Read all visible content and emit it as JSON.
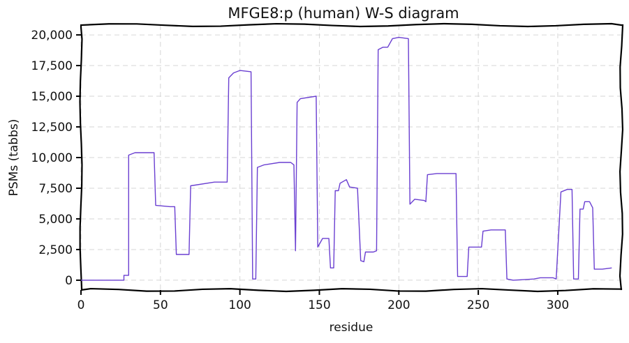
{
  "chart_data": {
    "type": "line",
    "title": "MFGE8:p (human) W-S diagram",
    "xlabel": "residue",
    "ylabel": "PSMs (tabbs)",
    "xlim": [
      0,
      340
    ],
    "ylim": [
      -800,
      20800
    ],
    "grid": true,
    "x_ticks": [
      0,
      50,
      100,
      150,
      200,
      250,
      300
    ],
    "x_tick_labels": [
      "0",
      "50",
      "100",
      "150",
      "200",
      "250",
      "300"
    ],
    "y_ticks": [
      0,
      2500,
      5000,
      7500,
      10000,
      12500,
      15000,
      17500,
      20000
    ],
    "y_tick_labels": [
      "0",
      "2,500",
      "5,000",
      "7,500",
      "10,000",
      "12,500",
      "15,000",
      "17,500",
      "20,000"
    ],
    "series": [
      {
        "color": "#6a3fd1",
        "points": [
          [
            0,
            0
          ],
          [
            27,
            0
          ],
          [
            27,
            400
          ],
          [
            30,
            400
          ],
          [
            30,
            10200
          ],
          [
            34,
            10400
          ],
          [
            46,
            10400
          ],
          [
            47,
            6100
          ],
          [
            56,
            6000
          ],
          [
            59,
            6000
          ],
          [
            60,
            2100
          ],
          [
            68,
            2100
          ],
          [
            69,
            7700
          ],
          [
            84,
            8000
          ],
          [
            92,
            8000
          ],
          [
            93,
            16500
          ],
          [
            96,
            16900
          ],
          [
            100,
            17100
          ],
          [
            107,
            17000
          ],
          [
            108,
            100
          ],
          [
            110,
            100
          ],
          [
            111,
            9200
          ],
          [
            115,
            9400
          ],
          [
            125,
            9600
          ],
          [
            132,
            9600
          ],
          [
            134,
            9400
          ],
          [
            135,
            2400
          ],
          [
            136,
            14500
          ],
          [
            138,
            14800
          ],
          [
            148,
            15000
          ],
          [
            149,
            2700
          ],
          [
            152,
            3400
          ],
          [
            156,
            3400
          ],
          [
            157,
            1000
          ],
          [
            159,
            1000
          ],
          [
            160,
            7300
          ],
          [
            162,
            7300
          ],
          [
            163,
            7900
          ],
          [
            167,
            8200
          ],
          [
            169,
            7600
          ],
          [
            174,
            7500
          ],
          [
            176,
            1600
          ],
          [
            178,
            1500
          ],
          [
            179,
            2300
          ],
          [
            184,
            2300
          ],
          [
            186,
            2400
          ],
          [
            187,
            18800
          ],
          [
            190,
            19000
          ],
          [
            193,
            19000
          ],
          [
            196,
            19700
          ],
          [
            200,
            19800
          ],
          [
            206,
            19700
          ],
          [
            207,
            6200
          ],
          [
            210,
            6600
          ],
          [
            216,
            6500
          ],
          [
            217,
            6400
          ],
          [
            218,
            8600
          ],
          [
            224,
            8700
          ],
          [
            236,
            8700
          ],
          [
            237,
            300
          ],
          [
            243,
            300
          ],
          [
            244,
            2700
          ],
          [
            250,
            2700
          ],
          [
            252,
            2700
          ],
          [
            253,
            4000
          ],
          [
            258,
            4100
          ],
          [
            267,
            4100
          ],
          [
            268,
            100
          ],
          [
            272,
            0
          ],
          [
            285,
            100
          ],
          [
            289,
            200
          ],
          [
            297,
            200
          ],
          [
            299,
            100
          ],
          [
            302,
            7200
          ],
          [
            306,
            7400
          ],
          [
            309,
            7400
          ],
          [
            310,
            100
          ],
          [
            313,
            100
          ],
          [
            314,
            5800
          ],
          [
            316,
            5800
          ],
          [
            317,
            6400
          ],
          [
            320,
            6400
          ],
          [
            322,
            5900
          ],
          [
            323,
            900
          ],
          [
            328,
            900
          ],
          [
            334,
            1000
          ]
        ]
      }
    ]
  }
}
